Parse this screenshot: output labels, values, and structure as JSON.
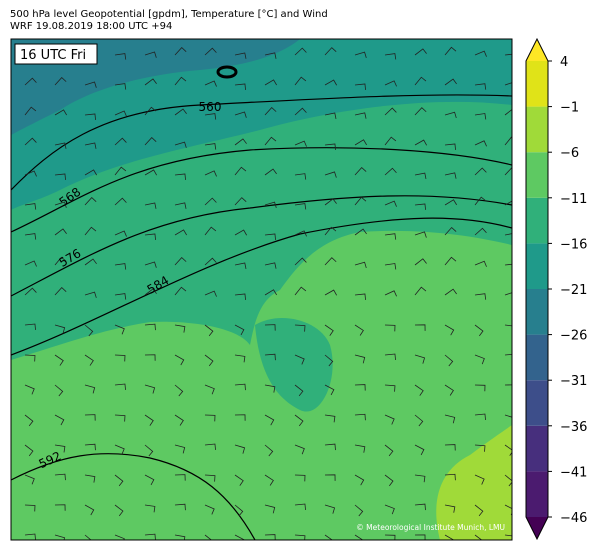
{
  "header": {
    "line1": "500 hPa level Geopotential [gpdm], Temperature [°C] and Wind",
    "line2": "WRF 19.08.2019 18:00 UTC +94"
  },
  "map": {
    "time_label": "16 UTC Fri",
    "contour_labels": [
      560,
      568,
      576,
      584,
      592
    ],
    "credit": "© Meteorological Institute Munich, LMU"
  },
  "colorbar": {
    "ticks": [
      {
        "value": 4,
        "label": "4"
      },
      {
        "value": -1,
        "label": "−1"
      },
      {
        "value": -6,
        "label": "−6"
      },
      {
        "value": -11,
        "label": "−11"
      },
      {
        "value": -16,
        "label": "−16"
      },
      {
        "value": -21,
        "label": "−21"
      },
      {
        "value": -26,
        "label": "−26"
      },
      {
        "value": -31,
        "label": "−31"
      },
      {
        "value": -36,
        "label": "−36"
      },
      {
        "value": -41,
        "label": "−41"
      },
      {
        "value": -46,
        "label": "−46"
      }
    ],
    "colors": [
      "#4b1b6f",
      "#472f7d",
      "#3d4e8a",
      "#33638d",
      "#277f8e",
      "#1f9a8a",
      "#30b07a",
      "#5ec962",
      "#a0da39",
      "#e0e318"
    ],
    "extend_colors": [
      "#440154",
      "#fde725"
    ]
  }
}
